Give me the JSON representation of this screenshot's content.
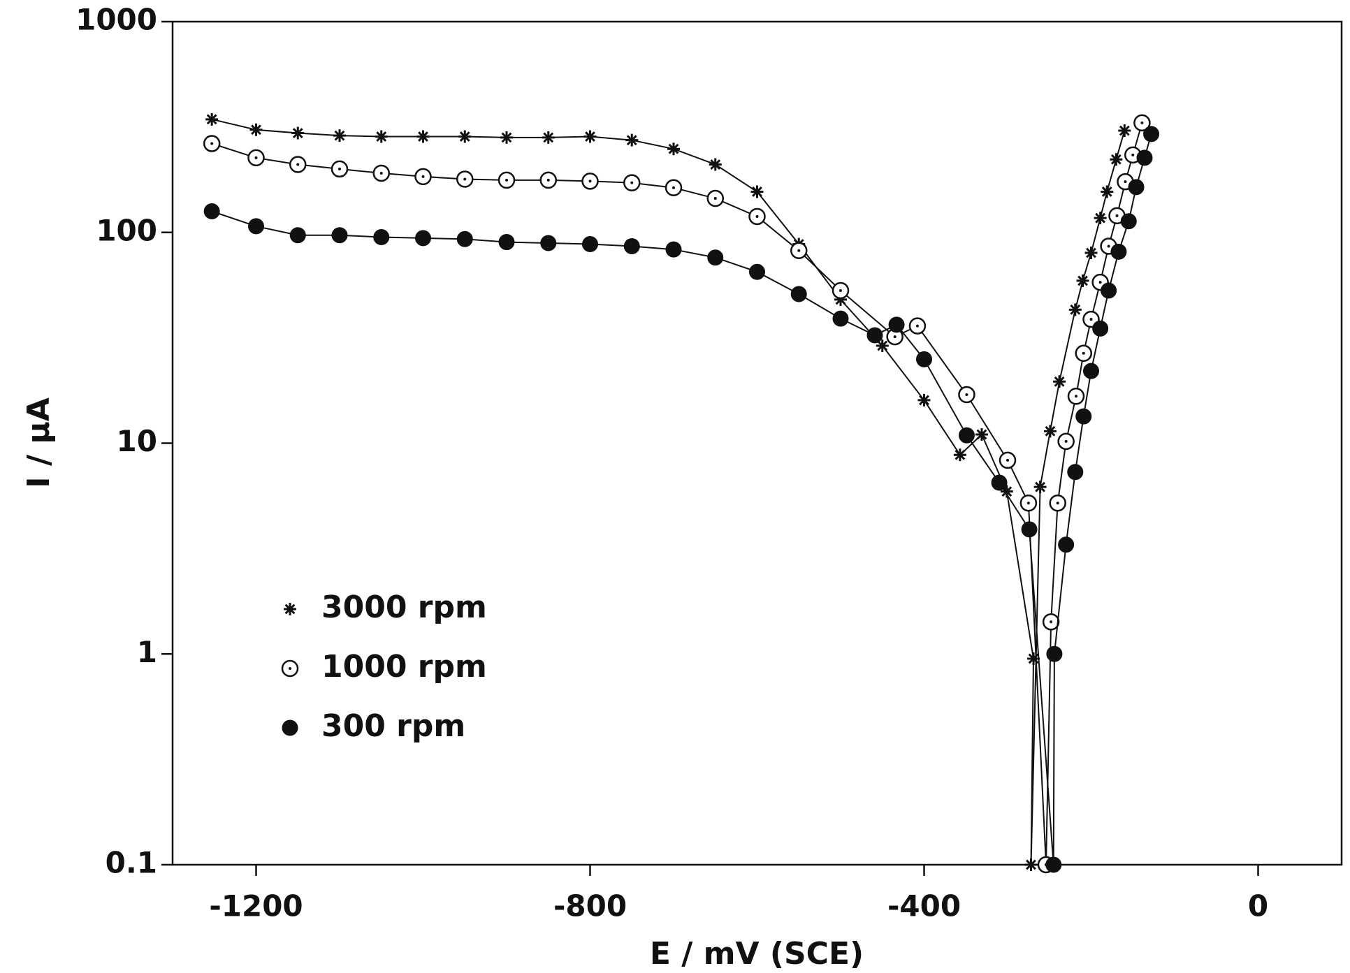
{
  "chart_data": {
    "type": "line",
    "x_label": "E / mV (SCE)",
    "y_label": "I / μA",
    "xlim": [
      -1300,
      100
    ],
    "ylim": [
      0.1,
      1000
    ],
    "xticks": [
      -1200,
      -800,
      -400,
      0
    ],
    "yticks": [
      0.1,
      1,
      10,
      100,
      1000
    ],
    "y_scale": "log",
    "grid": false,
    "legend_position": "lower left",
    "series": [
      {
        "name": "3000 rpm",
        "color": "#111111",
        "marker": "star",
        "x": [
          -1253,
          -1200,
          -1150,
          -1100,
          -1050,
          -1000,
          -950,
          -900,
          -850,
          -800,
          -750,
          -700,
          -650,
          -600,
          -550,
          -500,
          -450,
          -400,
          -357,
          -331,
          -301,
          -269,
          -272,
          -261,
          -249,
          -238,
          -219,
          -210,
          -200,
          -189,
          -181,
          -170,
          -160
        ],
        "values": [
          344,
          307,
          296,
          288,
          285,
          285,
          285,
          282,
          282,
          285,
          274,
          249,
          210,
          156,
          88,
          48,
          29,
          16,
          8.8,
          11,
          5.9,
          0.95,
          0.1,
          6.2,
          11.4,
          19.6,
          43,
          59,
          80,
          117,
          156,
          222,
          304
        ]
      },
      {
        "name": "1000 rpm",
        "color": "#111111",
        "marker": "open-circle-dot",
        "x": [
          -1253,
          -1200,
          -1150,
          -1100,
          -1050,
          -1000,
          -950,
          -900,
          -850,
          -800,
          -750,
          -700,
          -650,
          -600,
          -550,
          -500,
          -435,
          -408,
          -349,
          -300,
          -275,
          -254,
          -248,
          -240,
          -230,
          -218,
          -209,
          -200,
          -189,
          -179,
          -169,
          -159,
          -150,
          -139
        ],
        "values": [
          264,
          226,
          210,
          200,
          191,
          184,
          179,
          177,
          177,
          175,
          172,
          163,
          145,
          119,
          82,
          53,
          32,
          36,
          17,
          8.3,
          5.2,
          0.1,
          1.42,
          5.2,
          10.2,
          16.7,
          26.7,
          38.7,
          58,
          86,
          120,
          174,
          233,
          331
        ]
      },
      {
        "name": "300 rpm",
        "color": "#111111",
        "marker": "filled-circle",
        "x": [
          -1253,
          -1200,
          -1150,
          -1100,
          -1050,
          -1000,
          -950,
          -900,
          -850,
          -800,
          -750,
          -700,
          -650,
          -600,
          -550,
          -500,
          -459,
          -433,
          -400,
          -349,
          -310,
          -274,
          -245,
          -244,
          -230,
          -219,
          -209,
          -200,
          -189,
          -179,
          -167,
          -155,
          -146,
          -136,
          -128
        ],
        "values": [
          126,
          107,
          97,
          97,
          95,
          94,
          93,
          90,
          89,
          88,
          86,
          83,
          76,
          65,
          51,
          39,
          32.5,
          36.5,
          25,
          10.9,
          6.5,
          3.9,
          0.1,
          1.0,
          3.3,
          7.3,
          13.4,
          22,
          35,
          53,
          81,
          113,
          164,
          226,
          293
        ]
      }
    ]
  }
}
